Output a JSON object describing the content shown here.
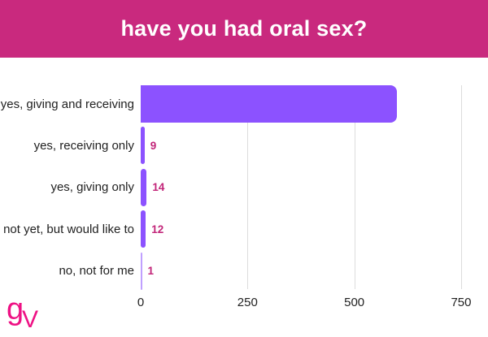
{
  "header": {
    "title": "have you had oral sex?",
    "background_color": "#C9297E",
    "text_color": "#FFFFFF"
  },
  "chart_data": {
    "type": "bar",
    "orientation": "horizontal",
    "title": "have you had oral sex?",
    "categories": [
      "yes, giving and receiving",
      "yes, receiving only",
      "yes, giving only",
      "not yet, but would like to",
      "no, not for me"
    ],
    "values": [
      600,
      9,
      14,
      12,
      1
    ],
    "value_labels_shown": [
      "",
      "9",
      "14",
      "12",
      "1"
    ],
    "x_ticks": [
      0,
      250,
      500,
      750
    ],
    "xlim": [
      0,
      810
    ],
    "xlabel": "",
    "ylabel": "",
    "grid": true,
    "legend": false,
    "bar_color": "#8C52FF",
    "value_label_color": "#C22579",
    "gridline_color": "#DCDCDC",
    "tick_label_color": "#1F1F1F",
    "category_label_color": "#1F1F1F"
  },
  "logo": {
    "g": "g",
    "v": "V",
    "color": "#EE1184"
  }
}
